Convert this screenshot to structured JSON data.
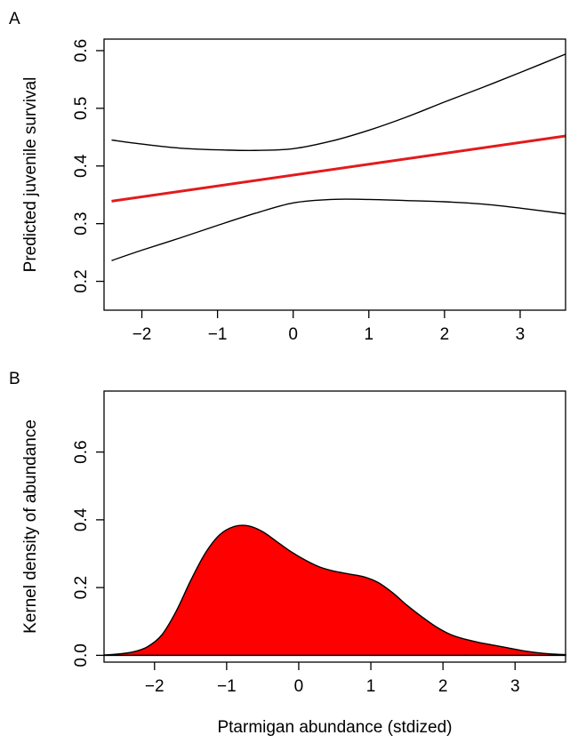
{
  "colors": {
    "fit": "#e31a1c",
    "ci": "#000000",
    "density_fill": "#ff0000",
    "axis": "#000000"
  },
  "chart_data": [
    {
      "panel": "A",
      "type": "line",
      "xlabel": "",
      "ylabel": "Predicted juvenile survival",
      "xlim": [
        -2.5,
        3.6
      ],
      "ylim": [
        0.15,
        0.62
      ],
      "x_ticks": [
        -2,
        -1,
        0,
        1,
        2,
        3
      ],
      "x_tick_labels": [
        "−2",
        "−1",
        "0",
        "1",
        "2",
        "3"
      ],
      "y_ticks": [
        0.2,
        0.3,
        0.4,
        0.5,
        0.6
      ],
      "y_tick_labels": [
        "0.2",
        "0.3",
        "0.4",
        "0.5",
        "0.6"
      ],
      "series": [
        {
          "role": "fit",
          "x": [
            -2.4,
            3.6
          ],
          "y": [
            0.339,
            0.452
          ]
        },
        {
          "role": "upper",
          "x": [
            -2.4,
            -2.0,
            -1.5,
            -1.0,
            -0.5,
            0.0,
            0.5,
            1.0,
            1.5,
            2.0,
            2.5,
            3.0,
            3.6
          ],
          "y": [
            0.445,
            0.438,
            0.431,
            0.428,
            0.427,
            0.43,
            0.443,
            0.462,
            0.485,
            0.511,
            0.536,
            0.562,
            0.594
          ]
        },
        {
          "role": "lower",
          "x": [
            -2.4,
            -2.0,
            -1.5,
            -1.0,
            -0.5,
            0.0,
            0.5,
            1.0,
            1.5,
            2.0,
            2.5,
            3.0,
            3.6
          ],
          "y": [
            0.236,
            0.254,
            0.275,
            0.297,
            0.318,
            0.336,
            0.342,
            0.342,
            0.34,
            0.338,
            0.334,
            0.327,
            0.317
          ]
        }
      ]
    },
    {
      "panel": "B",
      "type": "area",
      "xlabel": "Ptarmigan abundance (stdized)",
      "ylabel": "Kernel density of abundance",
      "xlim": [
        -2.7,
        3.7
      ],
      "ylim": [
        -0.02,
        0.78
      ],
      "x_ticks": [
        -2,
        -1,
        0,
        1,
        2,
        3
      ],
      "x_tick_labels": [
        "−2",
        "−1",
        "0",
        "1",
        "2",
        "3"
      ],
      "y_ticks": [
        0.0,
        0.2,
        0.4,
        0.6
      ],
      "y_tick_labels": [
        "0.0",
        "0.2",
        "0.4",
        "0.6"
      ],
      "series": [
        {
          "role": "density",
          "x": [
            -2.7,
            -2.5,
            -2.3,
            -2.1,
            -1.9,
            -1.7,
            -1.5,
            -1.3,
            -1.1,
            -0.9,
            -0.7,
            -0.5,
            -0.3,
            -0.1,
            0.1,
            0.3,
            0.5,
            0.7,
            0.9,
            1.1,
            1.3,
            1.5,
            1.7,
            1.9,
            2.1,
            2.3,
            2.5,
            2.7,
            2.9,
            3.1,
            3.3,
            3.5,
            3.7
          ],
          "y": [
            0.001,
            0.004,
            0.01,
            0.025,
            0.06,
            0.13,
            0.22,
            0.3,
            0.355,
            0.38,
            0.382,
            0.365,
            0.335,
            0.305,
            0.28,
            0.26,
            0.248,
            0.24,
            0.232,
            0.215,
            0.185,
            0.148,
            0.115,
            0.085,
            0.062,
            0.048,
            0.038,
            0.03,
            0.022,
            0.014,
            0.008,
            0.004,
            0.002
          ]
        }
      ]
    }
  ]
}
